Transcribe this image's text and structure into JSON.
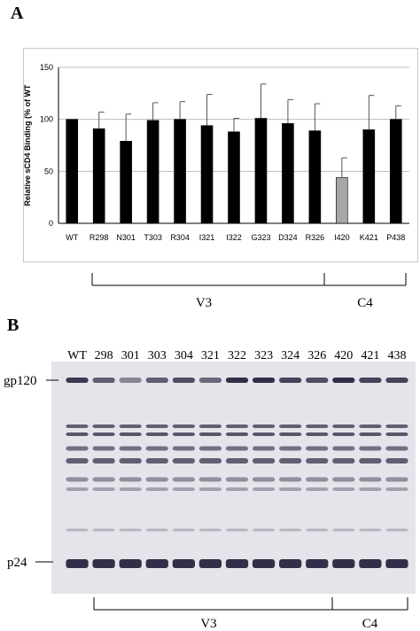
{
  "panels": {
    "a_letter": "A",
    "b_letter": "B"
  },
  "chart_data": {
    "type": "bar",
    "title": "",
    "xlabel": "",
    "ylabel": "Relative sCD4 Binding (% of WT",
    "ylim": [
      0,
      150
    ],
    "yticks": [
      "0",
      "50",
      "100",
      "150"
    ],
    "grid": true,
    "categories": [
      "WT",
      "R298",
      "N301",
      "T303",
      "R304",
      "I321",
      "I322",
      "G323",
      "D324",
      "R326",
      "I420",
      "K421",
      "P438"
    ],
    "values": [
      100,
      91,
      79,
      99,
      100,
      94,
      88,
      101,
      96,
      89,
      44,
      90,
      100
    ],
    "errors": [
      0,
      16,
      26,
      17,
      17,
      30,
      13,
      33,
      23,
      26,
      19,
      33,
      13
    ],
    "bar_colors": [
      "#000000",
      "#000000",
      "#000000",
      "#000000",
      "#000000",
      "#000000",
      "#000000",
      "#000000",
      "#000000",
      "#000000",
      "#a6a6a6",
      "#000000",
      "#000000"
    ],
    "regions": [
      {
        "label": "V3",
        "from": "R298",
        "to": "R326"
      },
      {
        "label": "C4",
        "from": "I420",
        "to": "P438"
      }
    ]
  },
  "blot": {
    "lanes": [
      "WT",
      "298",
      "301",
      "303",
      "304",
      "321",
      "322",
      "323",
      "324",
      "326",
      "420",
      "421",
      "438"
    ],
    "band_gp120": "gp120",
    "band_p24": "p24",
    "regions": [
      {
        "label": "V3",
        "from": "298",
        "to": "326"
      },
      {
        "label": "C4",
        "from": "420",
        "to": "438"
      }
    ]
  }
}
